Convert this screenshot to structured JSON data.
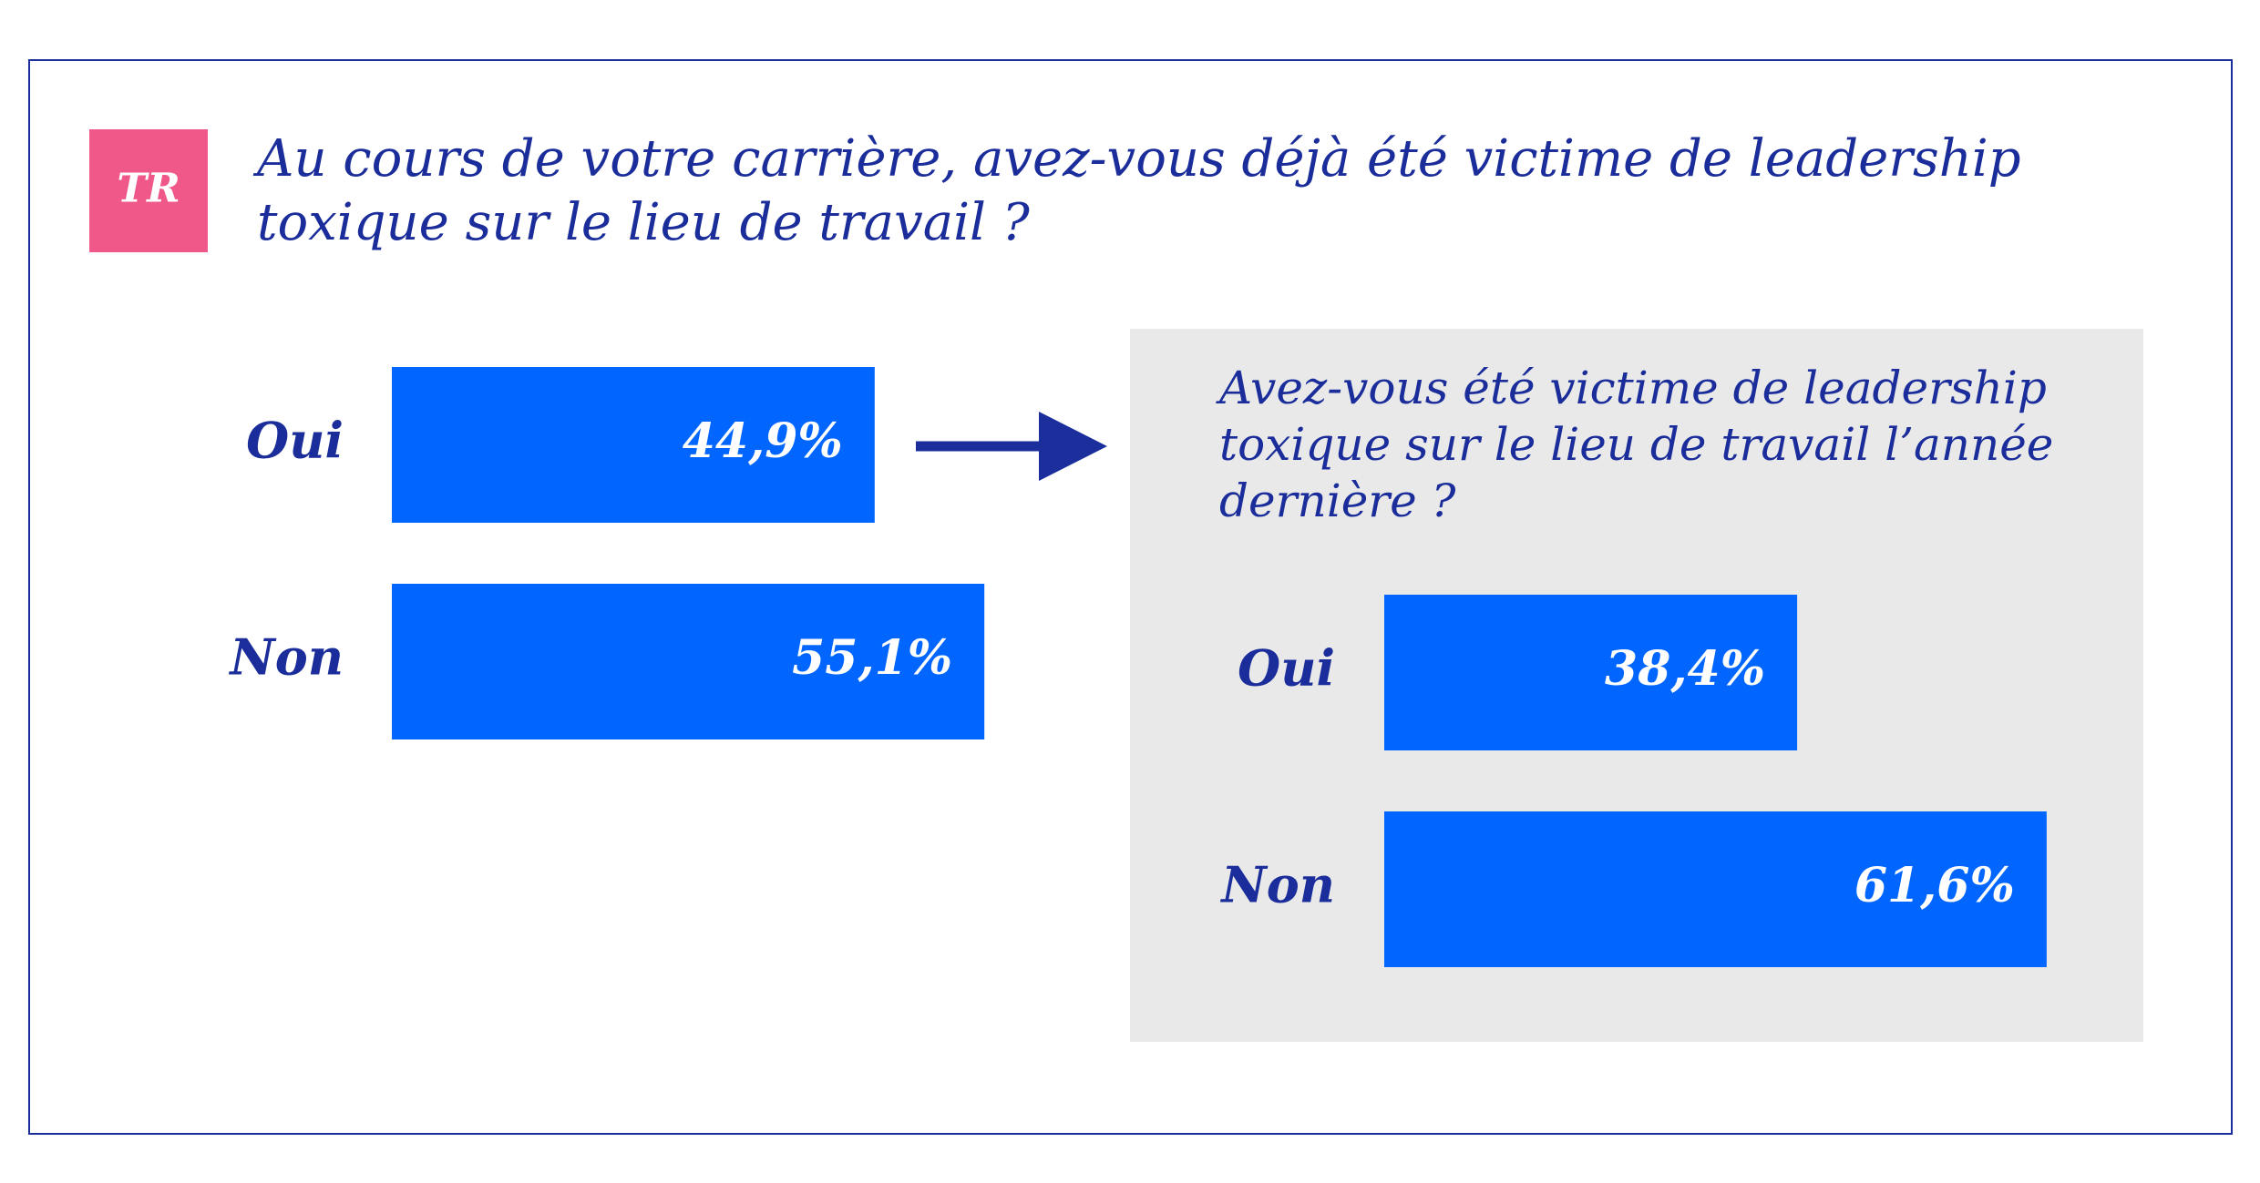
{
  "badge": "TR",
  "chart_data": [
    {
      "type": "bar",
      "orientation": "horizontal",
      "title": "Au cours de votre carrière, avez-vous déjà été victime de leadership toxique sur le lieu de travail ?",
      "categories": [
        "Oui",
        "Non"
      ],
      "values": [
        44.9,
        55.1
      ],
      "value_labels": [
        "44,9%",
        "55,1%"
      ],
      "color": "#0066ff"
    },
    {
      "type": "bar",
      "orientation": "horizontal",
      "title": "Avez-vous été victime de leadership toxique sur le lieu de travail l’année dernière ?",
      "categories": [
        "Oui",
        "Non"
      ],
      "values": [
        38.4,
        61.6
      ],
      "value_labels": [
        "38,4%",
        "61,6%"
      ],
      "color": "#0066ff"
    }
  ]
}
